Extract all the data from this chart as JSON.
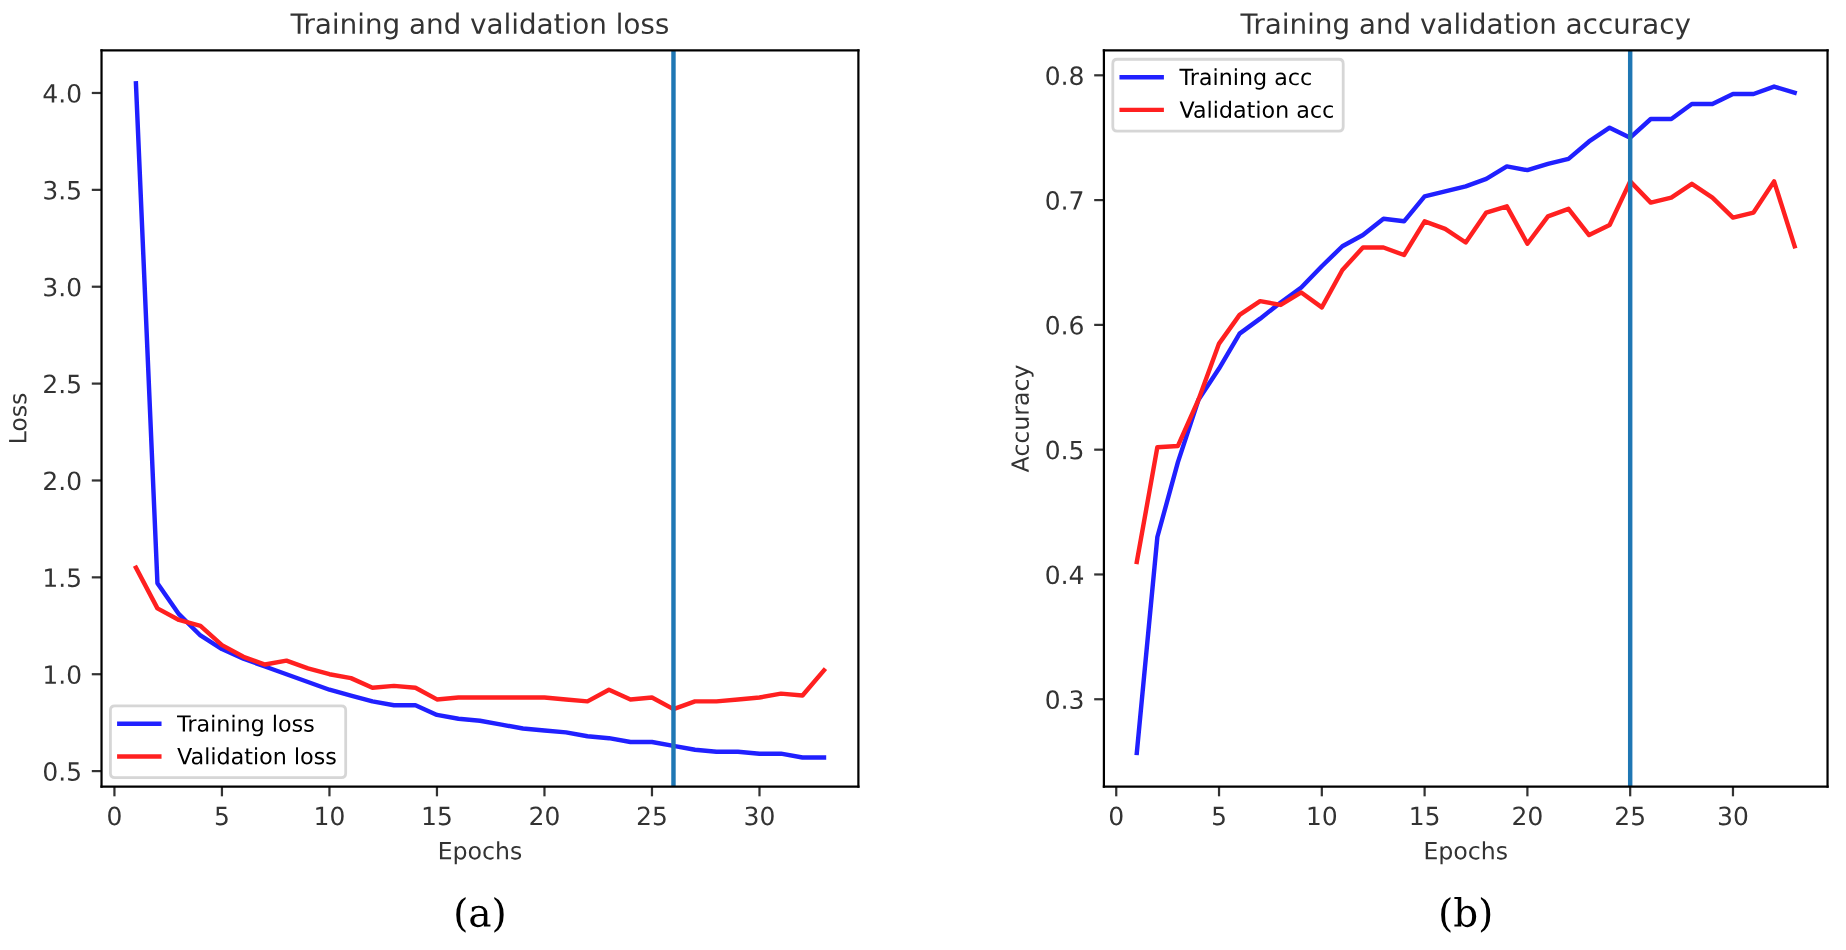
{
  "chart_data": [
    {
      "type": "line",
      "title": "Training and validation loss",
      "xlabel": "Epochs",
      "ylabel": "Loss",
      "x": [
        1,
        2,
        3,
        4,
        5,
        6,
        7,
        8,
        9,
        10,
        11,
        12,
        13,
        14,
        15,
        16,
        17,
        18,
        19,
        20,
        21,
        22,
        23,
        24,
        25,
        26,
        27,
        28,
        29,
        30,
        31,
        32,
        33
      ],
      "series": [
        {
          "name": "Training loss",
          "color": "#2020ff",
          "values": [
            4.05,
            1.47,
            1.31,
            1.2,
            1.13,
            1.08,
            1.04,
            1.0,
            0.96,
            0.92,
            0.89,
            0.86,
            0.84,
            0.84,
            0.79,
            0.77,
            0.76,
            0.74,
            0.72,
            0.71,
            0.7,
            0.68,
            0.67,
            0.65,
            0.65,
            0.63,
            0.61,
            0.6,
            0.6,
            0.59,
            0.59,
            0.57,
            0.57
          ]
        },
        {
          "name": "Validation loss",
          "color": "#ff2020",
          "values": [
            1.55,
            1.34,
            1.28,
            1.25,
            1.15,
            1.09,
            1.05,
            1.07,
            1.03,
            1.0,
            0.98,
            0.93,
            0.94,
            0.93,
            0.87,
            0.88,
            0.88,
            0.88,
            0.88,
            0.88,
            0.87,
            0.86,
            0.92,
            0.87,
            0.88,
            0.82,
            0.86,
            0.86,
            0.87,
            0.88,
            0.9,
            0.89,
            1.02
          ]
        }
      ],
      "xlim": [
        -0.6,
        34.6
      ],
      "xticks": [
        0,
        5,
        10,
        15,
        20,
        25,
        30
      ],
      "ylim": [
        0.42,
        4.22
      ],
      "yticks": [
        0.5,
        {
          "value": 1,
          "label": "1.0"
        },
        1.5,
        {
          "value": 2,
          "label": "2.0"
        },
        2.5,
        {
          "value": 3,
          "label": "3.0"
        },
        3.5,
        {
          "value": 4,
          "label": "4.0"
        }
      ],
      "ref_lines": [
        {
          "axis": "x",
          "value": 26,
          "color": "#1f77b4"
        }
      ],
      "legend": "bottom left",
      "grid": false,
      "annotations": [
        "(a)"
      ]
    },
    {
      "type": "line",
      "title": "Training and validation accuracy",
      "xlabel": "Epochs",
      "ylabel": "Accuracy",
      "x": [
        1,
        2,
        3,
        4,
        5,
        6,
        7,
        8,
        9,
        10,
        11,
        12,
        13,
        14,
        15,
        16,
        17,
        18,
        19,
        20,
        21,
        22,
        23,
        24,
        25,
        26,
        27,
        28,
        29,
        30,
        31,
        32,
        33
      ],
      "series": [
        {
          "name": "Training acc",
          "color": "#2020ff",
          "values": [
            0.257,
            0.43,
            0.49,
            0.54,
            0.565,
            0.593,
            0.605,
            0.618,
            0.63,
            0.647,
            0.663,
            0.672,
            0.685,
            0.683,
            0.703,
            0.707,
            0.711,
            0.717,
            0.727,
            0.724,
            0.729,
            0.733,
            0.747,
            0.758,
            0.75,
            0.765,
            0.765,
            0.777,
            0.777,
            0.785,
            0.785,
            0.791,
            0.786
          ]
        },
        {
          "name": "Validation acc",
          "color": "#ff2020",
          "values": [
            0.41,
            0.502,
            0.503,
            0.54,
            0.585,
            0.608,
            0.619,
            0.616,
            0.626,
            0.614,
            0.644,
            0.662,
            0.662,
            0.656,
            0.683,
            0.677,
            0.666,
            0.69,
            0.695,
            0.665,
            0.687,
            0.693,
            0.672,
            0.68,
            0.715,
            0.698,
            0.702,
            0.713,
            0.702,
            0.686,
            0.69,
            0.715,
            0.663
          ]
        }
      ],
      "xlim": [
        -0.6,
        34.6
      ],
      "xticks": [
        0,
        5,
        10,
        15,
        20,
        25,
        30
      ],
      "ylim": [
        0.23,
        0.82
      ],
      "yticks": [
        0.3,
        0.4,
        0.5,
        0.6,
        0.7,
        0.8
      ],
      "ref_lines": [
        {
          "axis": "x",
          "value": 25,
          "color": "#1f77b4"
        }
      ],
      "legend": "top left",
      "grid": false,
      "annotations": [
        "(b)"
      ]
    }
  ]
}
